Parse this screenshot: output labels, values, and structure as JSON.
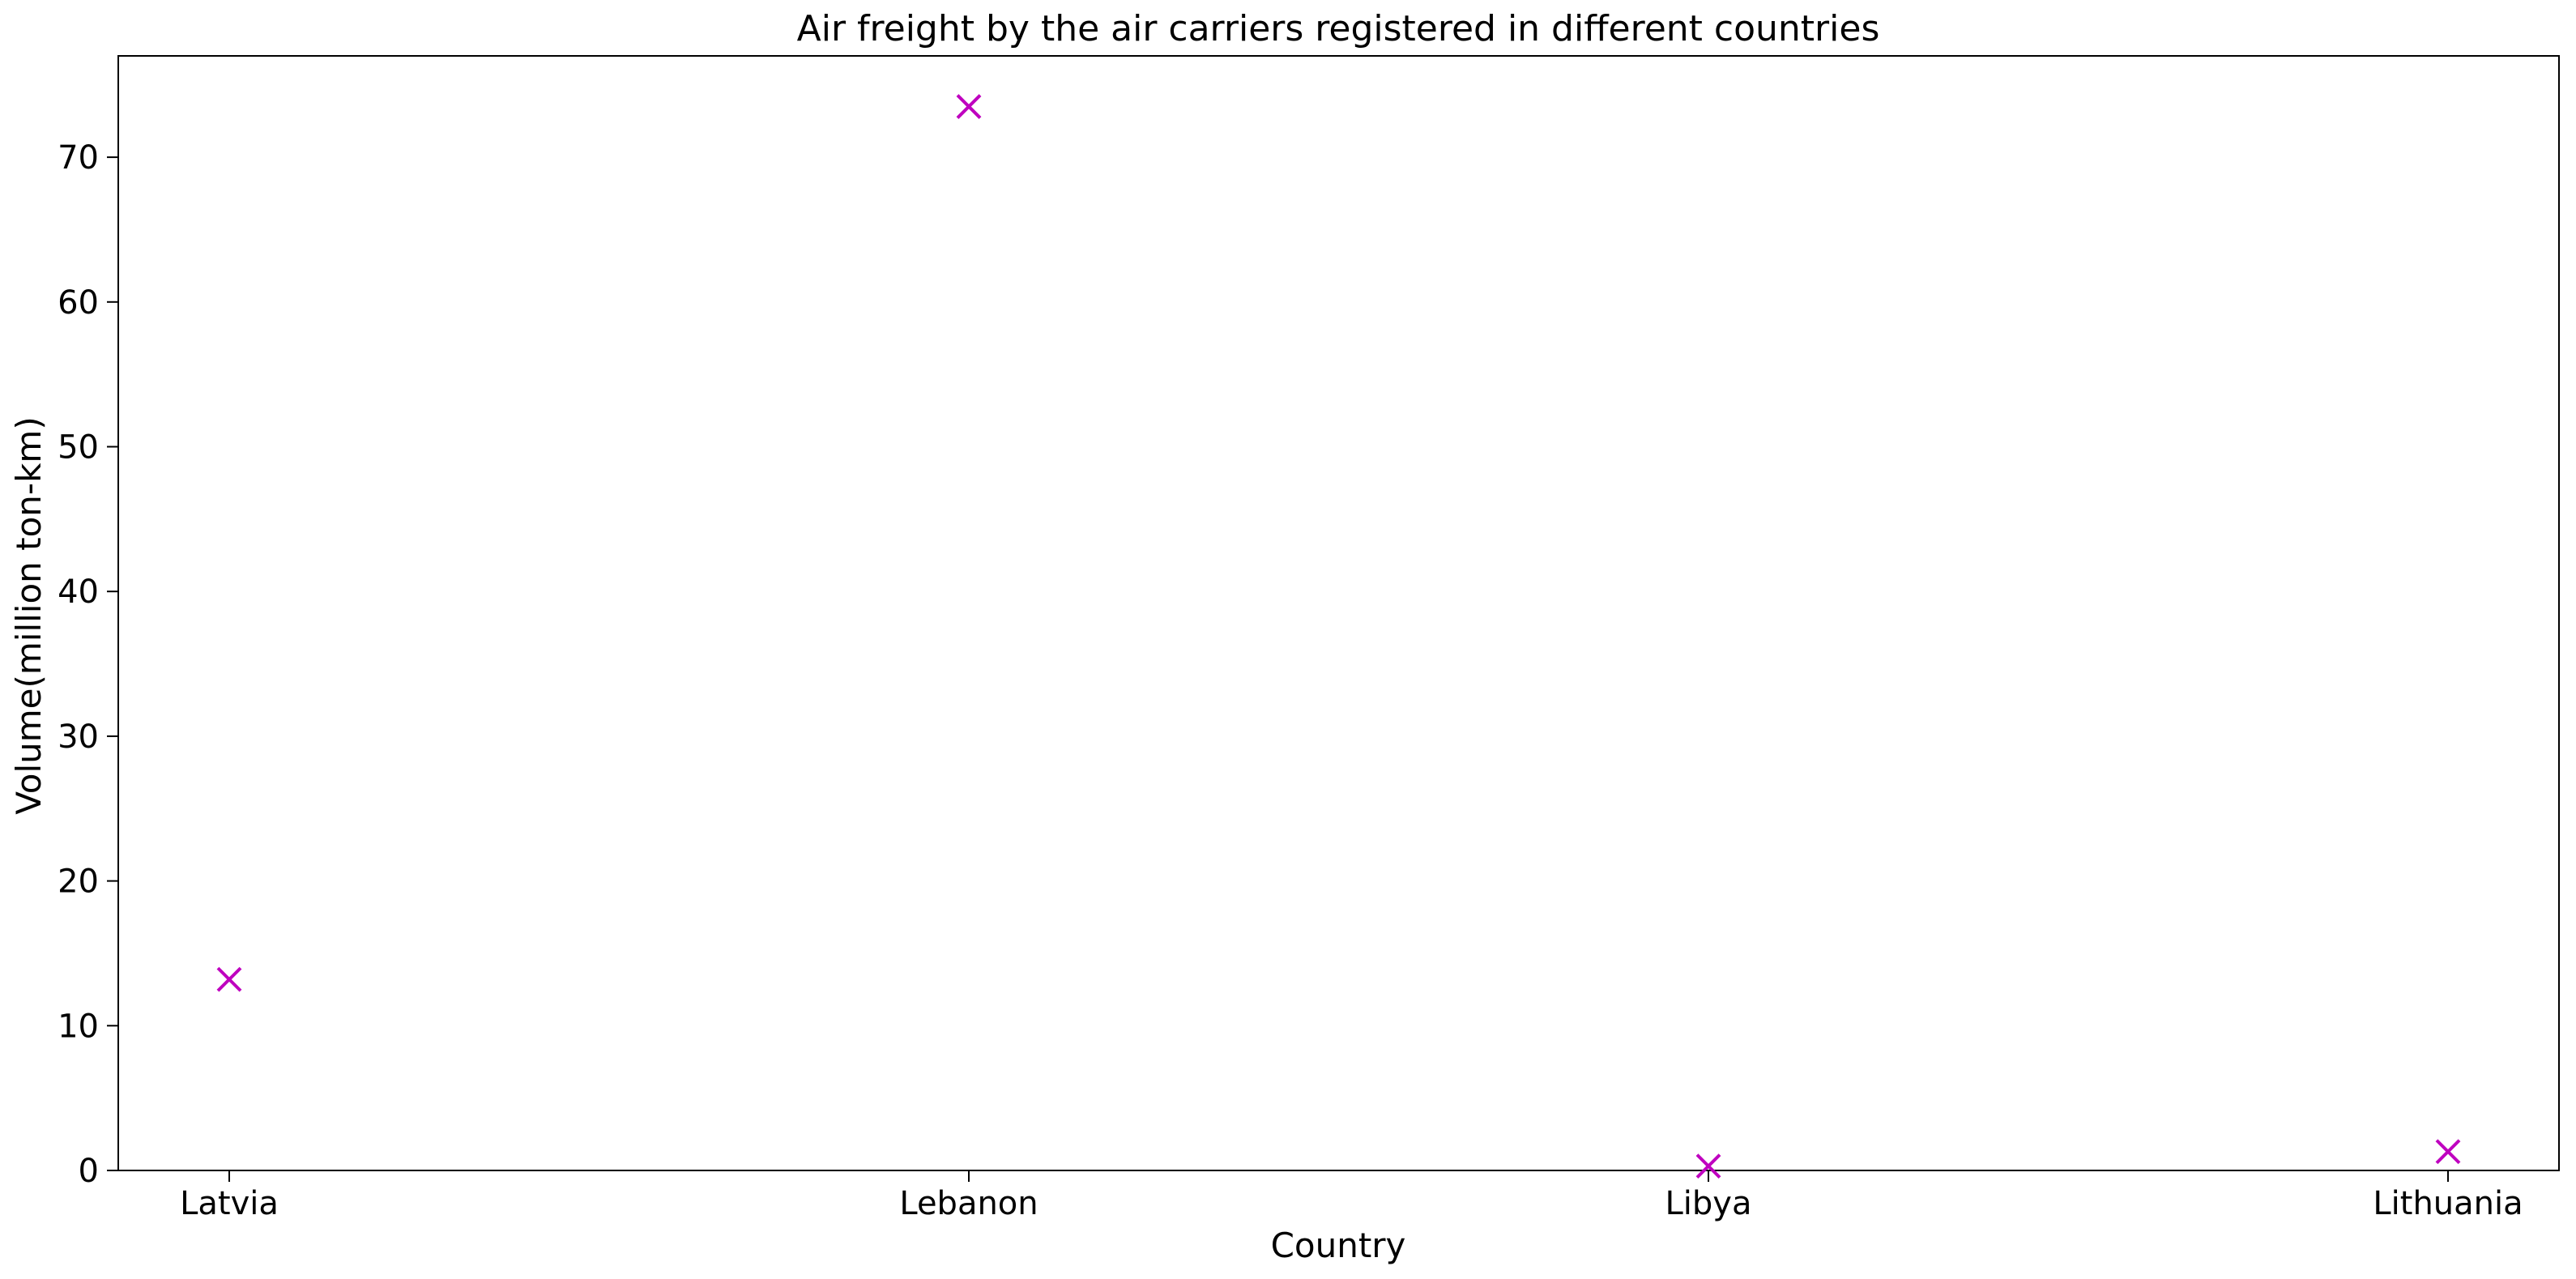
{
  "chart_data": {
    "type": "scatter",
    "title": "Air freight by the air carriers registered in different countries",
    "xlabel": "Country",
    "ylabel": "Volume(million ton-km)",
    "categories": [
      "Latvia",
      "Lebanon",
      "Libya",
      "Lithuania"
    ],
    "values": [
      13.2,
      73.5,
      0.3,
      1.3
    ],
    "ylim": [
      0,
      77
    ],
    "yticks": [
      0,
      10,
      20,
      30,
      40,
      50,
      60,
      70
    ],
    "marker": "x",
    "marker_color": "#bf00bf",
    "grid": false,
    "legend": "none"
  }
}
